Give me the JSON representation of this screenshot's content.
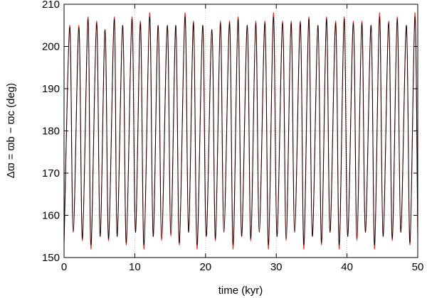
{
  "chart_data": {
    "type": "line",
    "xlabel": "time (kyr)",
    "ylabel": "Δϖ = ϖb − ϖc (deg)",
    "xlim": [
      0,
      50
    ],
    "ylim": [
      150,
      210
    ],
    "xticks": [
      "0",
      "10",
      "20",
      "30",
      "40",
      "50"
    ],
    "yticks": [
      "150",
      "160",
      "170",
      "180",
      "190",
      "200",
      "210"
    ],
    "grid": true,
    "legend": "none",
    "series": [
      {
        "color": "#e8302a",
        "x": [
          0,
          0.8,
          1.3,
          2.1,
          2.6,
          3.4,
          3.8,
          4.6,
          5.1,
          5.8,
          6.3,
          7.1,
          7.5,
          8.3,
          8.8,
          9.6,
          10.1,
          10.8,
          11.3,
          12.1,
          12.6,
          13.3,
          13.8,
          14.6,
          15.1,
          15.8,
          16.3,
          17.1,
          17.6,
          18.3,
          18.8,
          19.6,
          20.1,
          20.9,
          21.4,
          22.1,
          22.6,
          23.4,
          23.9,
          24.6,
          25.1,
          25.9,
          26.4,
          27.1,
          27.6,
          28.4,
          28.9,
          29.6,
          30.1,
          30.9,
          31.4,
          32.1,
          32.6,
          33.4,
          33.9,
          34.6,
          35.1,
          35.9,
          36.4,
          37.1,
          37.6,
          38.4,
          38.9,
          39.6,
          40.1,
          40.9,
          41.4,
          42.1,
          42.6,
          43.4,
          43.9,
          44.6,
          45.1,
          45.9,
          46.4,
          47.1,
          47.6,
          48.4,
          48.9,
          49.6,
          50
        ],
        "y": [
          153,
          205,
          156,
          205,
          154,
          207,
          152,
          206,
          155,
          204,
          154,
          207,
          155,
          205,
          153,
          207,
          156,
          206,
          152,
          208,
          155,
          205,
          154,
          205,
          155,
          205,
          153,
          208,
          156,
          206,
          152,
          205,
          155,
          204,
          154,
          206,
          156,
          206,
          152,
          207,
          155,
          205,
          154,
          206,
          156,
          206,
          152,
          208,
          155,
          206,
          154,
          206,
          156,
          206,
          152,
          207,
          155,
          205,
          153,
          207,
          156,
          206,
          152,
          207,
          155,
          206,
          154,
          206,
          156,
          205,
          152,
          208,
          155,
          206,
          154,
          207,
          156,
          205,
          153,
          208,
          155
        ]
      },
      {
        "color": "#000000",
        "x": [
          0,
          0.8,
          1.3,
          2.1,
          2.6,
          3.4,
          3.8,
          4.6,
          5.1,
          5.8,
          6.3,
          7.1,
          7.5,
          8.3,
          8.8,
          9.6,
          10.1,
          10.8,
          11.3,
          12.1,
          12.6,
          13.3,
          13.8,
          14.6,
          15.1,
          15.8,
          16.3,
          17.1,
          17.6,
          18.3,
          18.8,
          19.6,
          20.1,
          20.9,
          21.4,
          22.1,
          22.6,
          23.4,
          23.9,
          24.6,
          25.1,
          25.9,
          26.4,
          27.1,
          27.6,
          28.4,
          28.9,
          29.6,
          30.1,
          30.9,
          31.4,
          32.1,
          32.6,
          33.4,
          33.9,
          34.6,
          35.1,
          35.9,
          36.4,
          37.1,
          37.6,
          38.4,
          38.9,
          39.6,
          40.1,
          40.9,
          41.4,
          42.1,
          42.6,
          43.4,
          43.9,
          44.6,
          45.1,
          45.9,
          46.4,
          47.1,
          47.6,
          48.4,
          48.9,
          49.6,
          50
        ],
        "y": [
          153.5,
          204.5,
          156,
          204.5,
          154.5,
          206.5,
          153,
          205.5,
          155,
          204,
          154.5,
          206.5,
          155,
          205,
          153.5,
          206.5,
          156,
          205.5,
          153,
          207,
          155,
          205,
          154.5,
          205,
          155.5,
          205,
          153.5,
          207,
          156,
          205.5,
          153,
          205,
          155,
          204,
          154.5,
          205.5,
          156,
          205.5,
          153,
          206.5,
          155,
          205,
          154.5,
          205.5,
          156,
          205.5,
          153,
          207,
          155,
          205.5,
          154.5,
          205.5,
          156,
          205.5,
          153,
          206.5,
          155,
          205,
          153.5,
          206.5,
          156,
          205.5,
          153,
          206.5,
          155,
          205.5,
          154.5,
          205.5,
          156,
          205,
          153,
          207,
          155,
          205.5,
          154.5,
          206.5,
          156,
          205,
          153.5,
          207,
          155
        ]
      }
    ]
  }
}
